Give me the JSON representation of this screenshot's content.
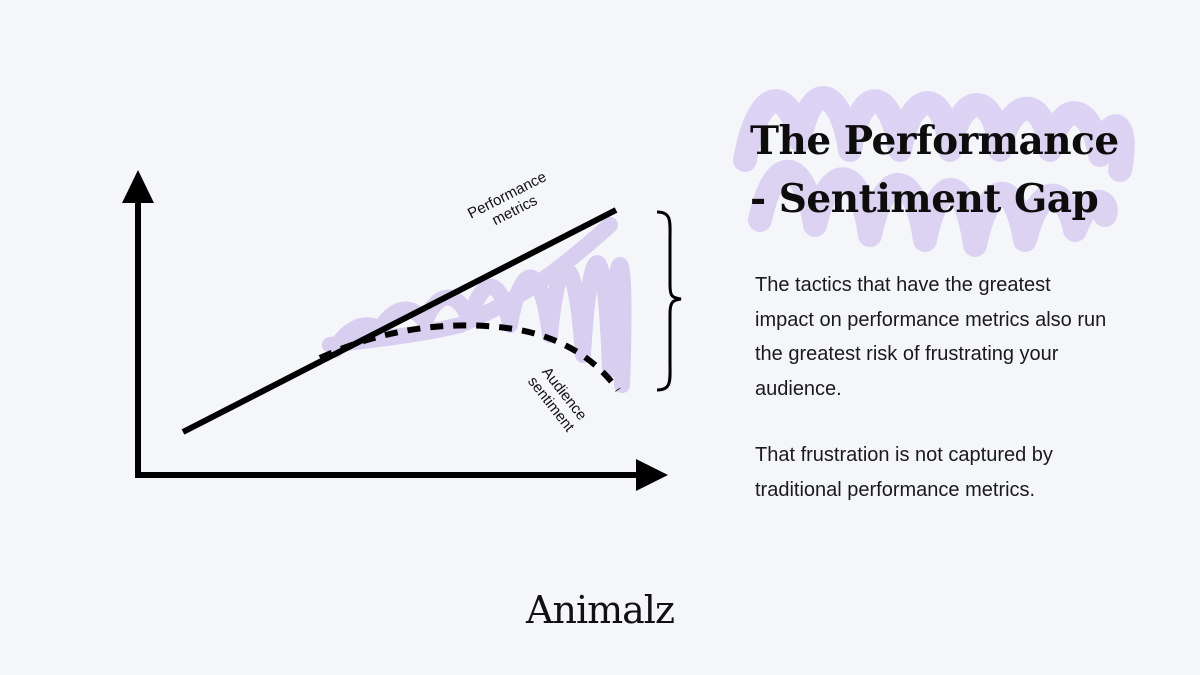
{
  "title": {
    "line1": "The Performance",
    "line2": "- Sentiment Gap"
  },
  "body": {
    "paragraph1": "The tactics that have the greatest impact on performance metrics also run the greatest risk of frustrating your audience.",
    "paragraph2": "That frustration is not captured by traditional performance metrics."
  },
  "diagram": {
    "performance_label": {
      "line1": "Performance",
      "line2": "metrics"
    },
    "audience_label": {
      "line1": "Audience",
      "line2": "sentiment"
    }
  },
  "logo": "Animalz",
  "colors": {
    "background": "#f5f6fa",
    "highlight": "#d5cbef",
    "ink": "#000000"
  }
}
